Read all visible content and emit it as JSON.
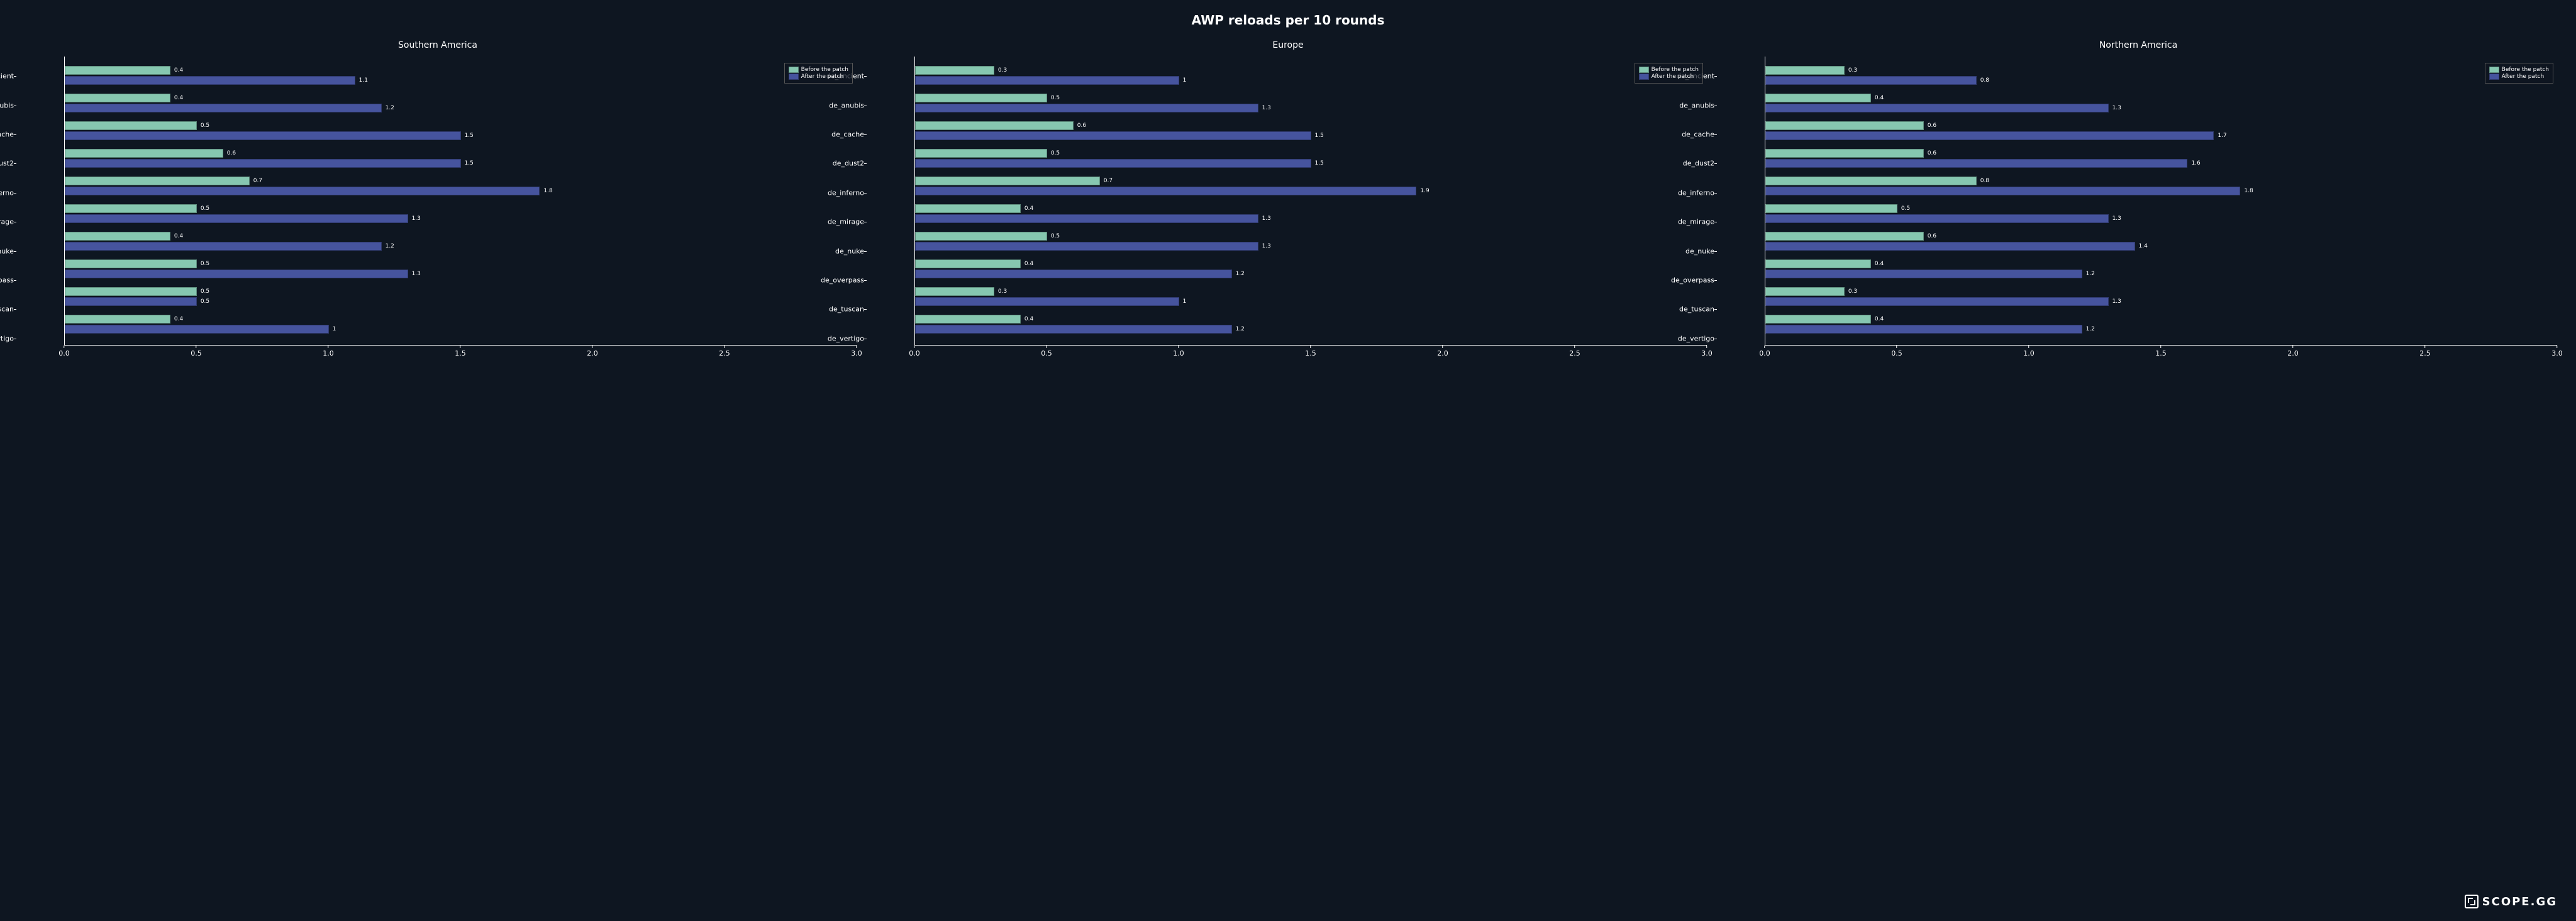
{
  "title": "AWP reloads per 10 rounds",
  "background_color": "#0e1621",
  "text_color": "#ffffff",
  "title_fontsize": 20,
  "subtitle_fontsize": 14,
  "axis_label_fontsize": 11,
  "value_label_fontsize": 9,
  "legend_fontsize": 9,
  "colors": {
    "before": "#86c7b0",
    "after": "#46549e"
  },
  "legend": {
    "before_label": "Before the patch",
    "after_label": "After the patch"
  },
  "x_axis": {
    "min": 0.0,
    "max": 3.0,
    "ticks": [
      0.0,
      0.5,
      1.0,
      1.5,
      2.0,
      2.5,
      3.0
    ],
    "tick_labels": [
      "0.0",
      "0.5",
      "1.0",
      "1.5",
      "2.0",
      "2.5",
      "3.0"
    ]
  },
  "maps": [
    "de_ancient",
    "de_anubis",
    "de_cache",
    "de_dust2",
    "de_inferno",
    "de_mirage",
    "de_nuke",
    "de_overpass",
    "de_tuscan",
    "de_vertigo"
  ],
  "panels": [
    {
      "title": "Southern America",
      "data": [
        {
          "before": 0.4,
          "after": 1.1
        },
        {
          "before": 0.4,
          "after": 1.2
        },
        {
          "before": 0.5,
          "after": 1.5
        },
        {
          "before": 0.6,
          "after": 1.5
        },
        {
          "before": 0.7,
          "after": 1.8
        },
        {
          "before": 0.5,
          "after": 1.3
        },
        {
          "before": 0.4,
          "after": 1.2
        },
        {
          "before": 0.5,
          "after": 1.3
        },
        {
          "before": 0.5,
          "after": 0.5
        },
        {
          "before": 0.4,
          "after": 1.0
        }
      ]
    },
    {
      "title": "Europe",
      "data": [
        {
          "before": 0.3,
          "after": 1.0
        },
        {
          "before": 0.5,
          "after": 1.3
        },
        {
          "before": 0.6,
          "after": 1.5
        },
        {
          "before": 0.5,
          "after": 1.5
        },
        {
          "before": 0.7,
          "after": 1.9
        },
        {
          "before": 0.4,
          "after": 1.3
        },
        {
          "before": 0.5,
          "after": 1.3
        },
        {
          "before": 0.4,
          "after": 1.2
        },
        {
          "before": 0.3,
          "after": 1.0
        },
        {
          "before": 0.4,
          "after": 1.2
        }
      ]
    },
    {
      "title": "Northern America",
      "data": [
        {
          "before": 0.3,
          "after": 0.8
        },
        {
          "before": 0.4,
          "after": 1.3
        },
        {
          "before": 0.6,
          "after": 1.7
        },
        {
          "before": 0.6,
          "after": 1.6
        },
        {
          "before": 0.8,
          "after": 1.8
        },
        {
          "before": 0.5,
          "after": 1.3
        },
        {
          "before": 0.6,
          "after": 1.4
        },
        {
          "before": 0.4,
          "after": 1.2
        },
        {
          "before": 0.3,
          "after": 1.3
        },
        {
          "before": 0.4,
          "after": 1.2
        }
      ]
    }
  ],
  "watermark": "SCOPE.GG"
}
